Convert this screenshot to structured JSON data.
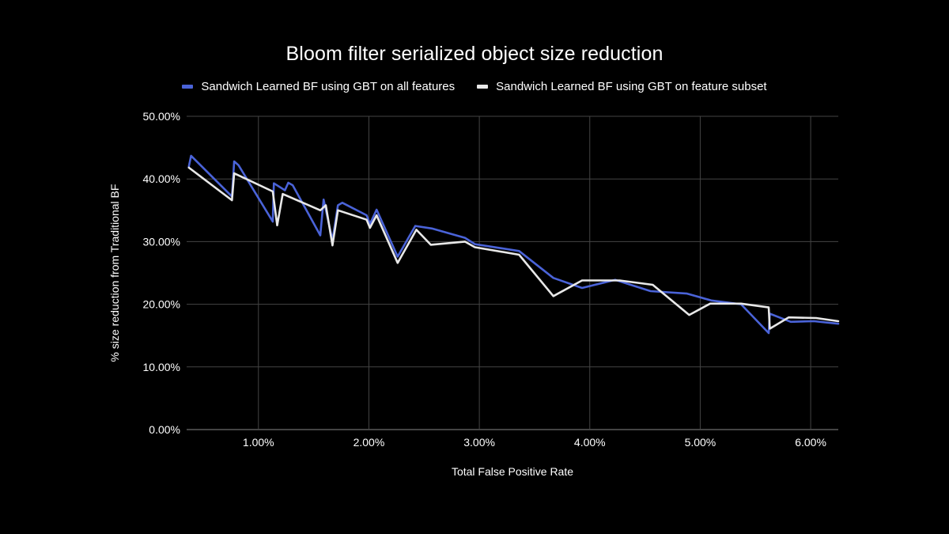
{
  "chart_data": {
    "type": "line",
    "title": "Bloom filter serialized object size reduction",
    "xlabel": "Total False Positive Rate",
    "ylabel": "% size reduction from Traditional BF",
    "xlim": [
      0.35,
      6.25
    ],
    "ylim": [
      0,
      50
    ],
    "x_ticks": [
      1,
      2,
      3,
      4,
      5,
      6
    ],
    "x_tick_labels": [
      "1.00%",
      "2.00%",
      "3.00%",
      "4.00%",
      "5.00%",
      "6.00%"
    ],
    "y_ticks": [
      0,
      10,
      20,
      30,
      40,
      50
    ],
    "y_tick_labels": [
      "0.00%",
      "10.00%",
      "20.00%",
      "30.00%",
      "40.00%",
      "50.00%"
    ],
    "grid": true,
    "legend_position": "top-center",
    "series": [
      {
        "name": "Sandwich Learned BF using GBT on all features",
        "color": "#4a63d8",
        "points": [
          [
            0.37,
            42.0
          ],
          [
            0.39,
            43.7
          ],
          [
            0.76,
            37.2
          ],
          [
            0.78,
            42.8
          ],
          [
            0.82,
            42.2
          ],
          [
            1.13,
            33.2
          ],
          [
            1.14,
            39.3
          ],
          [
            1.24,
            38.2
          ],
          [
            1.27,
            39.4
          ],
          [
            1.31,
            39.0
          ],
          [
            1.56,
            31.0
          ],
          [
            1.59,
            36.7
          ],
          [
            1.67,
            30.2
          ],
          [
            1.72,
            35.8
          ],
          [
            1.76,
            36.2
          ],
          [
            1.98,
            34.2
          ],
          [
            2.01,
            32.8
          ],
          [
            2.07,
            35.1
          ],
          [
            2.26,
            27.6
          ],
          [
            2.42,
            32.5
          ],
          [
            2.57,
            32.1
          ],
          [
            2.87,
            30.6
          ],
          [
            2.96,
            29.6
          ],
          [
            3.36,
            28.5
          ],
          [
            3.67,
            24.2
          ],
          [
            3.93,
            22.6
          ],
          [
            4.23,
            23.9
          ],
          [
            4.55,
            22.1
          ],
          [
            4.88,
            21.7
          ],
          [
            5.1,
            20.6
          ],
          [
            5.37,
            20.0
          ],
          [
            5.62,
            15.4
          ],
          [
            5.63,
            18.5
          ],
          [
            5.82,
            17.2
          ],
          [
            6.03,
            17.3
          ],
          [
            6.25,
            16.9
          ]
        ]
      },
      {
        "name": "Sandwich Learned BF using GBT on feature subset",
        "color": "#e8e8e8",
        "points": [
          [
            0.37,
            41.8
          ],
          [
            0.76,
            36.6
          ],
          [
            0.78,
            40.9
          ],
          [
            1.13,
            38.0
          ],
          [
            1.17,
            32.6
          ],
          [
            1.22,
            37.6
          ],
          [
            1.56,
            35.0
          ],
          [
            1.61,
            35.8
          ],
          [
            1.67,
            29.4
          ],
          [
            1.72,
            35.0
          ],
          [
            1.98,
            33.5
          ],
          [
            2.01,
            32.2
          ],
          [
            2.07,
            34.2
          ],
          [
            2.26,
            26.6
          ],
          [
            2.43,
            31.9
          ],
          [
            2.56,
            29.5
          ],
          [
            2.87,
            30.0
          ],
          [
            2.96,
            29.1
          ],
          [
            3.36,
            27.9
          ],
          [
            3.67,
            21.3
          ],
          [
            3.93,
            23.8
          ],
          [
            4.27,
            23.8
          ],
          [
            4.57,
            23.1
          ],
          [
            4.9,
            18.3
          ],
          [
            5.09,
            20.1
          ],
          [
            5.37,
            20.1
          ],
          [
            5.62,
            19.5
          ],
          [
            5.63,
            16.1
          ],
          [
            5.8,
            17.9
          ],
          [
            6.05,
            17.8
          ],
          [
            6.25,
            17.3
          ]
        ]
      }
    ]
  }
}
